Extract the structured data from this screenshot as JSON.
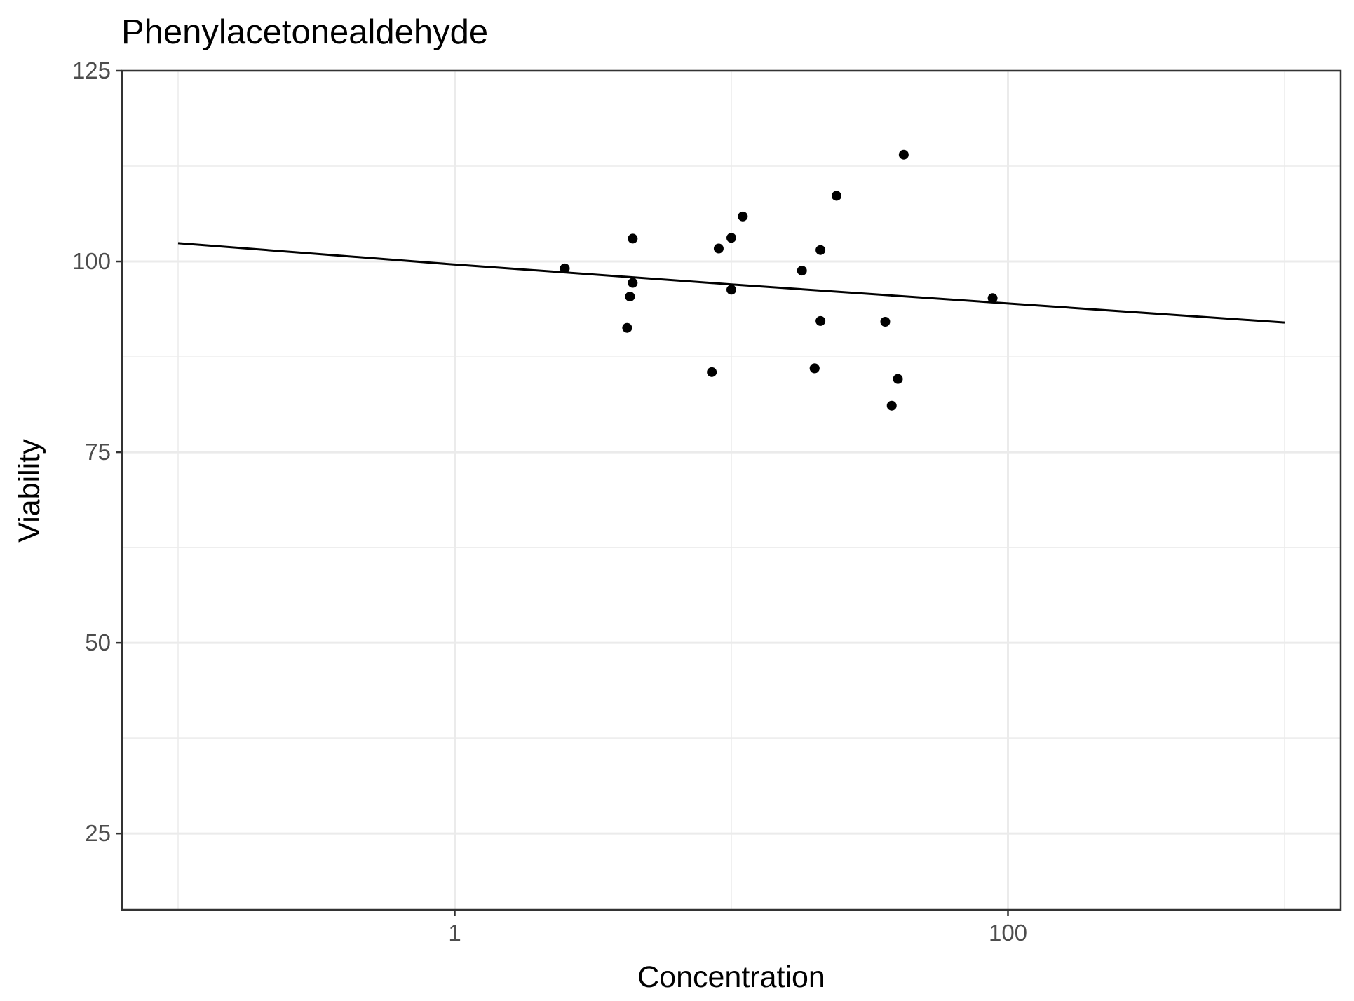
{
  "chart_data": {
    "type": "scatter",
    "title": "Phenylacetonealdehyde",
    "xlabel": "Concentration",
    "ylabel": "Viability",
    "x_scale": "log10",
    "xlim": [
      0.1,
      1000
    ],
    "ylim": [
      15,
      125
    ],
    "x_ticks": [
      1,
      100
    ],
    "x_tick_labels": [
      "1",
      "100"
    ],
    "y_ticks": [
      25,
      50,
      75,
      100,
      125
    ],
    "y_tick_labels": [
      "25",
      "50",
      "75",
      "100",
      "125"
    ],
    "grid": true,
    "legend": "none",
    "points": {
      "x": [
        2.5,
        4.3,
        4.2,
        4.4,
        4.4,
        9.0,
        10.0,
        10.0,
        11.0,
        18.0,
        20.0,
        21.0,
        21.0,
        24.0,
        20.0,
        36.0,
        38.0,
        40.0,
        42.0,
        88.0,
        8.5
      ],
      "y": [
        99.1,
        95.4,
        91.3,
        103.0,
        97.2,
        101.7,
        103.1,
        96.3,
        105.9,
        98.8,
        86.0,
        101.5,
        92.2,
        108.6,
        86.0,
        92.1,
        81.1,
        84.6,
        114.0,
        95.2,
        85.5
      ]
    },
    "fit_line": {
      "x": [
        0.1,
        1,
        10,
        100,
        1000
      ],
      "y": [
        102.4,
        99.6,
        97.0,
        94.5,
        92.0
      ]
    },
    "colors": {
      "points": "#000000",
      "line": "#000000",
      "grid": "#ebebeb",
      "border": "#333333",
      "tick_label": "#4d4d4d"
    }
  }
}
